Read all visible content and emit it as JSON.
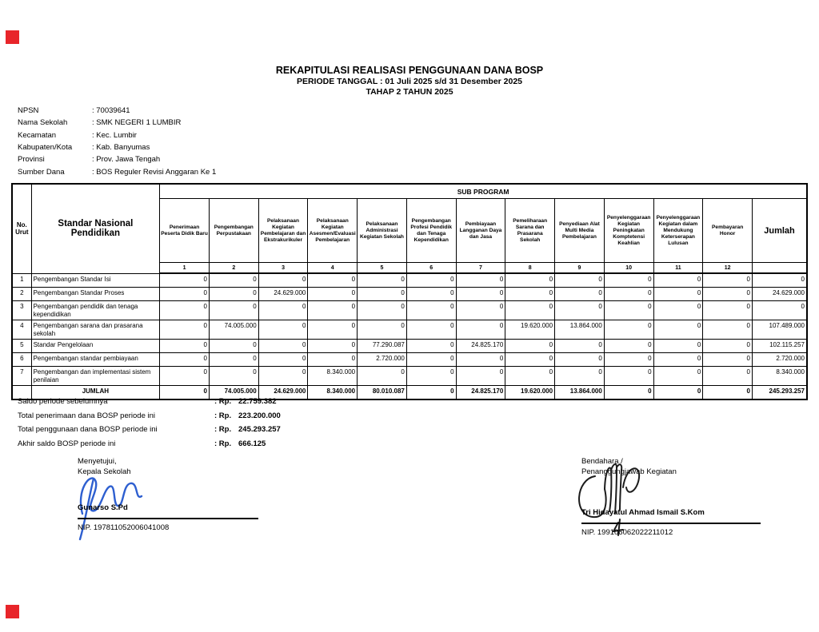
{
  "colors": {
    "marker_red": "#e8252a",
    "left_ink": "#2e5fd0",
    "right_ink": "#1c1c1c"
  },
  "markers": {
    "top": "red-square",
    "bottom": "red-square"
  },
  "title": {
    "line1": "REKAPITULASI REALISASI PENGGUNAAN DANA BOSP",
    "line2": "PERIODE TANGGAL : 01 Juli 2025 s/d 31 Desember 2025",
    "line3": "TAHAP 2 TAHUN 2025"
  },
  "school_info": {
    "rows": [
      {
        "label": "NPSN",
        "value": ": 70039641"
      },
      {
        "label": "Nama Sekolah",
        "value": ": SMK NEGERI 1 LUMBIR"
      },
      {
        "label": "Kecamatan",
        "value": ": Kec. Lumbir"
      },
      {
        "label": "Kabupaten/Kota",
        "value": ": Kab. Banyumas"
      },
      {
        "label": "Provinsi",
        "value": ": Prov. Jawa Tengah"
      },
      {
        "label": "Sumber Dana",
        "value": ": BOS Reguler Revisi Anggaran Ke 1"
      }
    ]
  },
  "table": {
    "header": {
      "no_urut": "No. Urut",
      "snp": "Standar Nasional Pendidikan",
      "sub_program": "SUB PROGRAM",
      "jumlah": "Jumlah"
    },
    "columns": [
      {
        "number": "1",
        "label": "Penerimaan Peserta Didik Baru"
      },
      {
        "number": "2",
        "label": "Pengembangan Perpustakaan"
      },
      {
        "number": "3",
        "label": "Pelaksanaan Kegiatan Pembelajaran dan Ekstrakurikuler"
      },
      {
        "number": "4",
        "label": "Pelaksanaan Kegiatan Asesmen/Evaluasi Pembelajaran"
      },
      {
        "number": "5",
        "label": "Pelaksanaan Administrasi Kegiatan Sekolah"
      },
      {
        "number": "6",
        "label": "Pengembangan Profesi Pendidik dan Tenaga Kependidikan"
      },
      {
        "number": "7",
        "label": "Pembiayaan Langganan Daya dan Jasa"
      },
      {
        "number": "8",
        "label": "Pemeliharaan Sarana dan Prasarana Sekolah"
      },
      {
        "number": "9",
        "label": "Penyediaan Alat Multi Media Pembelajaran"
      },
      {
        "number": "10",
        "label": "Penyelenggaraan Kegiatan Peningkatan Komptetensi Keahlian"
      },
      {
        "number": "11",
        "label": "Penyelenggaraan Kegiatan dalam Mendukung Keterserapan Lulusan"
      },
      {
        "number": "12",
        "label": "Pembayaran Honor"
      }
    ],
    "rows": [
      {
        "no": "1",
        "name": "Pengembangan Standar Isi",
        "values": [
          "0",
          "0",
          "0",
          "0",
          "0",
          "0",
          "0",
          "0",
          "0",
          "0",
          "0",
          "0"
        ],
        "total": "0"
      },
      {
        "no": "2",
        "name": "Pengembangan Standar Proses",
        "values": [
          "0",
          "0",
          "24.629.000",
          "0",
          "0",
          "0",
          "0",
          "0",
          "0",
          "0",
          "0",
          "0"
        ],
        "total": "24.629.000"
      },
      {
        "no": "3",
        "name": "Pengembangan pendidik dan tenaga kependidikan",
        "values": [
          "0",
          "0",
          "0",
          "0",
          "0",
          "0",
          "0",
          "0",
          "0",
          "0",
          "0",
          "0"
        ],
        "total": "0"
      },
      {
        "no": "4",
        "name": "Pengembangan sarana dan prasarana sekolah",
        "values": [
          "0",
          "74.005.000",
          "0",
          "0",
          "0",
          "0",
          "0",
          "19.620.000",
          "13.864.000",
          "0",
          "0",
          "0"
        ],
        "total": "107.489.000"
      },
      {
        "no": "5",
        "name": "Standar Pengelolaan",
        "values": [
          "0",
          "0",
          "0",
          "0",
          "77.290.087",
          "0",
          "24.825.170",
          "0",
          "0",
          "0",
          "0",
          "0"
        ],
        "total": "102.115.257"
      },
      {
        "no": "6",
        "name": "Pengembangan standar pembiayaan",
        "values": [
          "0",
          "0",
          "0",
          "0",
          "2.720.000",
          "0",
          "0",
          "0",
          "0",
          "0",
          "0",
          "0"
        ],
        "total": "2.720.000"
      },
      {
        "no": "7",
        "name": "Pengembangan dan implementasi sistem penilaian",
        "values": [
          "0",
          "0",
          "0",
          "8.340.000",
          "0",
          "0",
          "0",
          "0",
          "0",
          "0",
          "0",
          "0"
        ],
        "total": "8.340.000"
      }
    ],
    "total_row": {
      "label": "JUMLAH",
      "values": [
        "0",
        "74.005.000",
        "24.629.000",
        "8.340.000",
        "80.010.087",
        "0",
        "24.825.170",
        "19.620.000",
        "13.864.000",
        "0",
        "0",
        "0"
      ],
      "total": "245.293.257"
    }
  },
  "summary": {
    "currency_prefix": ": Rp.",
    "rows": [
      {
        "label": "Saldo periode sebelumnya",
        "amount": "22.759.382"
      },
      {
        "label": "Total penerimaan dana BOSP periode ini",
        "amount": "223.200.000"
      },
      {
        "label": "Total penggunaan dana BOSP periode ini",
        "amount": "245.293.257"
      },
      {
        "label": "Akhir saldo BOSP periode ini",
        "amount": "666.125"
      }
    ]
  },
  "signatures": {
    "left": {
      "role_line1": "Menyetujui,",
      "role_line2": "Kepala Sekolah",
      "name": "Gunarso S.Pd",
      "nip": "NIP. 197811052006041008"
    },
    "right": {
      "role_line1": "Bendahara /",
      "role_line2": "Penanggungjawab Kegiatan",
      "name": "Tri Hidayatul Ahmad Ismail S.Kom",
      "nip": "NIP. 199106062022211012"
    }
  }
}
